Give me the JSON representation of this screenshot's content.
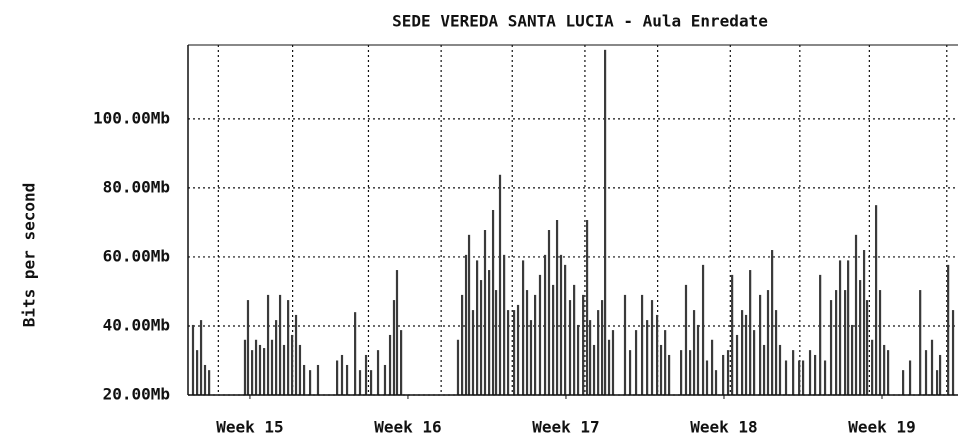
{
  "chart_data": {
    "type": "bar",
    "title": "SEDE VEREDA SANTA LUCIA - Aula Enredate",
    "ylabel": "Bits per second",
    "color": "#3a3a3a",
    "grid": true,
    "ylim": [
      20,
      121.4
    ],
    "yticks": [
      {
        "value": 20,
        "label": "20.00Mb"
      },
      {
        "value": 40,
        "label": "40.00Mb"
      },
      {
        "value": 60,
        "label": "60.00Mb"
      },
      {
        "value": 80,
        "label": "80.00Mb"
      },
      {
        "value": 100,
        "label": "100.00Mb"
      }
    ],
    "xlim": [
      14.608,
      19.481
    ],
    "xticks": [
      {
        "value": 15,
        "label": "Week 15"
      },
      {
        "value": 16,
        "label": "Week 16"
      },
      {
        "value": 17,
        "label": "Week 17"
      },
      {
        "value": 18,
        "label": "Week 18"
      },
      {
        "value": 19,
        "label": "Week 19"
      }
    ],
    "xgrid": [
      14.8,
      15.27,
      15.75,
      16.21,
      16.66,
      17.12,
      17.58,
      18.04,
      18.48,
      18.92,
      19.41
    ],
    "x": [
      14.639,
      14.665,
      14.69,
      14.715,
      14.741,
      14.968,
      14.987,
      15.013,
      15.038,
      15.063,
      15.089,
      15.114,
      15.139,
      15.165,
      15.19,
      15.215,
      15.241,
      15.266,
      15.291,
      15.316,
      15.342,
      15.38,
      15.43,
      15.551,
      15.582,
      15.614,
      15.665,
      15.696,
      15.734,
      15.766,
      15.81,
      15.854,
      15.886,
      15.911,
      15.93,
      15.956,
      16.316,
      16.342,
      16.367,
      16.386,
      16.411,
      16.437,
      16.462,
      16.487,
      16.513,
      16.538,
      16.557,
      16.582,
      16.608,
      16.633,
      16.671,
      16.696,
      16.728,
      16.753,
      16.778,
      16.804,
      16.835,
      16.867,
      16.892,
      16.918,
      16.943,
      16.968,
      16.994,
      17.025,
      17.051,
      17.076,
      17.108,
      17.133,
      17.152,
      17.177,
      17.203,
      17.228,
      17.247,
      17.272,
      17.297,
      17.373,
      17.405,
      17.443,
      17.481,
      17.513,
      17.544,
      17.576,
      17.601,
      17.627,
      17.652,
      17.728,
      17.759,
      17.785,
      17.81,
      17.835,
      17.867,
      17.892,
      17.924,
      17.949,
      17.994,
      18.025,
      18.051,
      18.082,
      18.114,
      18.139,
      18.165,
      18.19,
      18.228,
      18.253,
      18.278,
      18.304,
      18.329,
      18.354,
      18.392,
      18.437,
      18.475,
      18.5,
      18.544,
      18.576,
      18.608,
      18.639,
      18.677,
      18.709,
      18.734,
      18.766,
      18.785,
      18.81,
      18.835,
      18.861,
      18.886,
      18.905,
      18.937,
      18.962,
      18.987,
      19.013,
      19.038,
      19.133,
      19.177,
      19.241,
      19.278,
      19.316,
      19.348,
      19.367,
      19.418,
      19.449
    ],
    "values": [
      40.3,
      33,
      41.7,
      28.7,
      27.2,
      36,
      47.5,
      33,
      36,
      34.5,
      33.6,
      49,
      36,
      41.7,
      49,
      34.5,
      47.5,
      37.4,
      43.2,
      34.5,
      28.7,
      27.2,
      28.7,
      30,
      31.6,
      28.7,
      44,
      27.2,
      31.6,
      27.2,
      33,
      28.7,
      37.4,
      47.5,
      56.2,
      38.8,
      36,
      49,
      60.6,
      66.4,
      44.6,
      59,
      53.3,
      67.8,
      56.2,
      73.6,
      50.4,
      83.8,
      60.6,
      44.6,
      44.6,
      46.1,
      59,
      50.4,
      41.7,
      49,
      54.8,
      60.6,
      67.8,
      51.9,
      70.7,
      60.6,
      57.7,
      47.5,
      51.9,
      40.3,
      49,
      70.7,
      41.7,
      34.5,
      44.6,
      47.5,
      120,
      36,
      38.8,
      49,
      33,
      38.8,
      49,
      41.7,
      47.5,
      43.2,
      34.5,
      38.8,
      31.6,
      33,
      51.9,
      33,
      44.6,
      40.3,
      57.7,
      30,
      36,
      27.2,
      31.6,
      33,
      54.8,
      37.4,
      44.6,
      43.2,
      56.2,
      38.8,
      49,
      34.5,
      50.4,
      62,
      44.6,
      34.5,
      30,
      33,
      30,
      30,
      33,
      31.6,
      54.8,
      30,
      47.5,
      50.4,
      59,
      50.4,
      59,
      40.3,
      66.4,
      53.3,
      62,
      47.5,
      36,
      75,
      50.4,
      34.5,
      33,
      27.2,
      30,
      50.4,
      33,
      36,
      27.2,
      31.6,
      57.7,
      44.6
    ]
  }
}
